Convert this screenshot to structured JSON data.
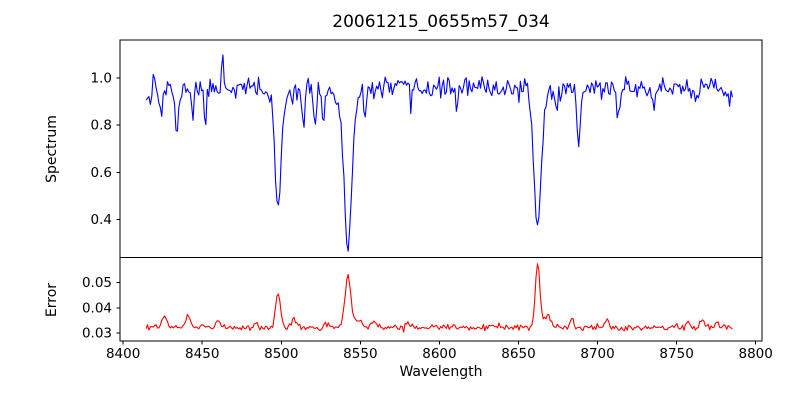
{
  "chart_data": {
    "type": "line",
    "title": "20061215_0655m57_034",
    "xlabel": "Wavelength",
    "grid": false,
    "legend": null,
    "xlim": [
      8398,
      8804
    ],
    "xticks": [
      8400,
      8450,
      8500,
      8550,
      8600,
      8650,
      8700,
      8750,
      8800
    ],
    "xtick_labels": [
      "8400",
      "8450",
      "8500",
      "8550",
      "8600",
      "8650",
      "8700",
      "8750",
      "8800"
    ],
    "x_data_range": [
      8414.5,
      8785.5
    ],
    "x_step": 0.9,
    "noise_seed": 11,
    "panels": [
      {
        "id": "spectrum",
        "ylabel": "Spectrum",
        "line_color": "#0000ff",
        "ylim": [
          0.238,
          1.162
        ],
        "yticks": [
          0.4,
          0.6,
          0.8,
          1.0
        ],
        "ytick_labels": [
          "0.4",
          "0.6",
          "0.8",
          "1.0"
        ],
        "baseline": 0.958,
        "noise_sigma": 0.021,
        "clamp": [
          0.262,
          1.145
        ],
        "features_note": "absorption/emission features as [center_wavelength, delta, sigma]; Ca II triplet cores at 8498/8542/8662",
        "features": [
          [
            8498.0,
            -0.44,
            1.9
          ],
          [
            8498.0,
            -0.07,
            4.5
          ],
          [
            8542.1,
            -0.58,
            2.3
          ],
          [
            8542.1,
            -0.1,
            6.0
          ],
          [
            8662.1,
            -0.53,
            2.0
          ],
          [
            8662.1,
            -0.08,
            5.0
          ],
          [
            8419.5,
            0.09,
            0.6
          ],
          [
            8424.0,
            -0.1,
            0.9
          ],
          [
            8434.0,
            -0.22,
            1.0
          ],
          [
            8444.0,
            -0.11,
            0.8
          ],
          [
            8452.0,
            -0.13,
            0.9
          ],
          [
            8463.0,
            0.13,
            0.7
          ],
          [
            8514.0,
            -0.15,
            1.0
          ],
          [
            8521.0,
            -0.16,
            1.0
          ],
          [
            8526.5,
            -0.12,
            0.8
          ],
          [
            8553.0,
            -0.09,
            0.8
          ],
          [
            8582.0,
            -0.08,
            0.8
          ],
          [
            8611.0,
            -0.07,
            0.7
          ],
          [
            8674.0,
            -0.1,
            0.8
          ],
          [
            8688.0,
            -0.25,
            1.0
          ],
          [
            8713.0,
            -0.12,
            0.9
          ],
          [
            8736.0,
            -0.1,
            0.8
          ],
          [
            8762.0,
            -0.08,
            0.7
          ],
          [
            8410.0,
            -0.03,
            10.0
          ],
          [
            8793.0,
            -0.04,
            10.0
          ]
        ]
      },
      {
        "id": "error",
        "ylabel": "Error",
        "line_color": "#ff0000",
        "ylim": [
          0.0268,
          0.06
        ],
        "yticks": [
          0.03,
          0.04,
          0.05
        ],
        "ytick_labels": [
          "0.03",
          "0.04",
          "0.05"
        ],
        "baseline": 0.0322,
        "noise_sigma": 0.0006,
        "clamp": [
          0.0282,
          0.059
        ],
        "features_note": "error spikes at the absorption-line positions as [center_wavelength, delta, sigma]",
        "features": [
          [
            8426.0,
            0.0042,
            1.6
          ],
          [
            8441.0,
            0.0045,
            1.4
          ],
          [
            8460.0,
            0.0035,
            1.2
          ],
          [
            8484.0,
            0.0018,
            1.2
          ],
          [
            8498.0,
            0.0128,
            1.6
          ],
          [
            8508.0,
            0.0022,
            1.5
          ],
          [
            8542.1,
            0.0208,
            1.8
          ],
          [
            8548.0,
            0.003,
            2.5
          ],
          [
            8558.0,
            0.0028,
            1.2
          ],
          [
            8580.0,
            0.002,
            1.2
          ],
          [
            8662.1,
            0.0255,
            1.4
          ],
          [
            8668.0,
            0.0042,
            2.2
          ],
          [
            8684.0,
            0.0032,
            1.2
          ],
          [
            8706.0,
            0.0034,
            1.3
          ],
          [
            8757.0,
            0.0026,
            1.2
          ],
          [
            8766.0,
            0.003,
            1.2
          ],
          [
            8776.0,
            0.0022,
            1.0
          ]
        ]
      }
    ],
    "colors": {
      "axes": "#000000",
      "background": "#ffffff",
      "spectrum_line": "#0000ff",
      "error_line": "#ff0000"
    }
  }
}
